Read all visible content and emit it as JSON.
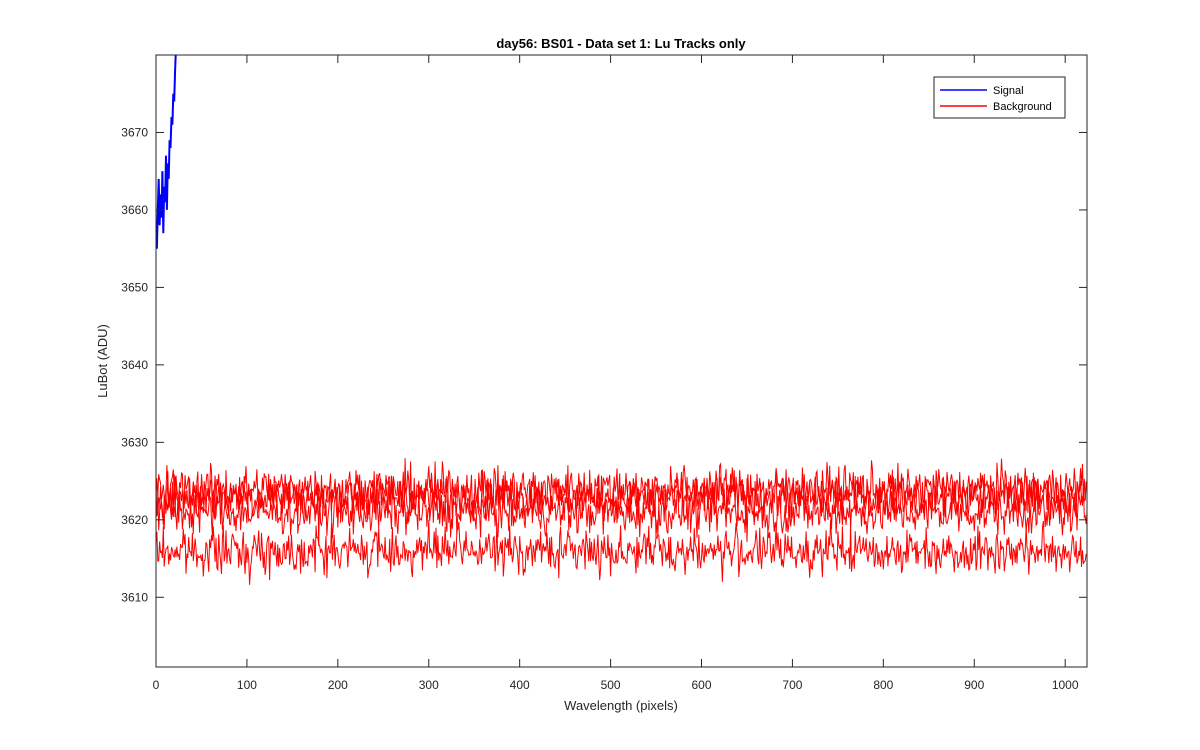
{
  "chart_data": {
    "type": "line",
    "title": "day56: BS01 - Data set 1: Lu Tracks only",
    "xlabel": "Wavelength (pixels)",
    "ylabel": "LuBot (ADU)",
    "xlim": [
      0,
      1024
    ],
    "ylim": [
      3601,
      3680
    ],
    "xticks": [
      0,
      100,
      200,
      300,
      400,
      500,
      600,
      700,
      800,
      900,
      1000
    ],
    "yticks": [
      3610,
      3620,
      3630,
      3640,
      3650,
      3660,
      3670
    ],
    "grid": false,
    "legend_position": "top-right",
    "series": [
      {
        "name": "Signal",
        "color": "#0000ff",
        "x": [
          1,
          2,
          3,
          4,
          5,
          6,
          7,
          8,
          9,
          10,
          11,
          12,
          13,
          14,
          15,
          16,
          17,
          18,
          19,
          20,
          21,
          22
        ],
        "y": [
          3655,
          3660,
          3664,
          3658,
          3662,
          3659,
          3665,
          3657,
          3663,
          3661,
          3667,
          3660,
          3666,
          3664,
          3669,
          3668,
          3672,
          3671,
          3675,
          3674,
          3678,
          3681
        ]
      },
      {
        "name": "Background",
        "color": "#ff0000",
        "bands": [
          {
            "mean": 3616,
            "amplitude": 2.5,
            "min": 3611,
            "max": 3620
          },
          {
            "mean": 3621,
            "amplitude": 2.5,
            "min": 3616,
            "max": 3626
          },
          {
            "mean": 3623,
            "amplitude": 2.5,
            "min": 3618,
            "max": 3628
          },
          {
            "mean": 3624,
            "amplitude": 2.5,
            "min": 3619,
            "max": 3630
          }
        ]
      }
    ]
  }
}
